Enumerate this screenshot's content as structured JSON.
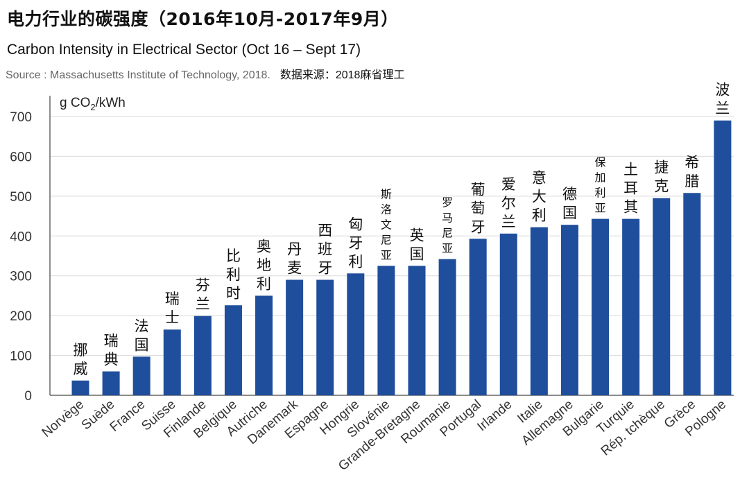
{
  "title_cn": "电力行业的碳强度（2016年10月-2017年9月）",
  "title_en": "Carbon Intensity in Electrical Sector (Oct 16 – Sept 17)",
  "source_en": "Source : Massachusetts Institute of Technology, 2018.",
  "source_cn": "数据来源：2018麻省理工",
  "colors": {
    "bar": "#1f4e9c",
    "grid": "#d9d9d9",
    "axis": "#666666"
  },
  "chart_data": {
    "type": "bar",
    "title": "Carbon Intensity in Electrical Sector (Oct 16 – Sept 17)",
    "ylabel": "g CO2/kWh",
    "ylim": [
      0,
      700
    ],
    "yticks": [
      0,
      100,
      200,
      300,
      400,
      500,
      600,
      700
    ],
    "grid": true,
    "categories": [
      "Norvège",
      "Suède",
      "France",
      "Suisse",
      "Finlande",
      "Belgique",
      "Autriche",
      "Danemark",
      "Espagne",
      "Hongrie",
      "Slovénie",
      "Grande-Bretagne",
      "Roumanie",
      "Portugal",
      "Irlande",
      "Italie",
      "Allemagne",
      "Bulgarie",
      "Turquie",
      "Rép. tchèque",
      "Grèce",
      "Pologne"
    ],
    "categories_cn": [
      "挪威",
      "瑞典",
      "法国",
      "瑞士",
      "芬兰",
      "比利时",
      "奥地利",
      "丹麦",
      "西班牙",
      "匈牙利",
      "斯洛文尼亚",
      "英国",
      "罗马尼亚",
      "葡萄牙",
      "爱尔兰",
      "意大利",
      "德国",
      "保加利亚",
      "土耳其",
      "捷克",
      "希腊",
      "波兰"
    ],
    "values": [
      37,
      60,
      97,
      165,
      199,
      226,
      250,
      290,
      290,
      306,
      325,
      325,
      342,
      393,
      406,
      422,
      428,
      443,
      443,
      495,
      508,
      690
    ]
  }
}
